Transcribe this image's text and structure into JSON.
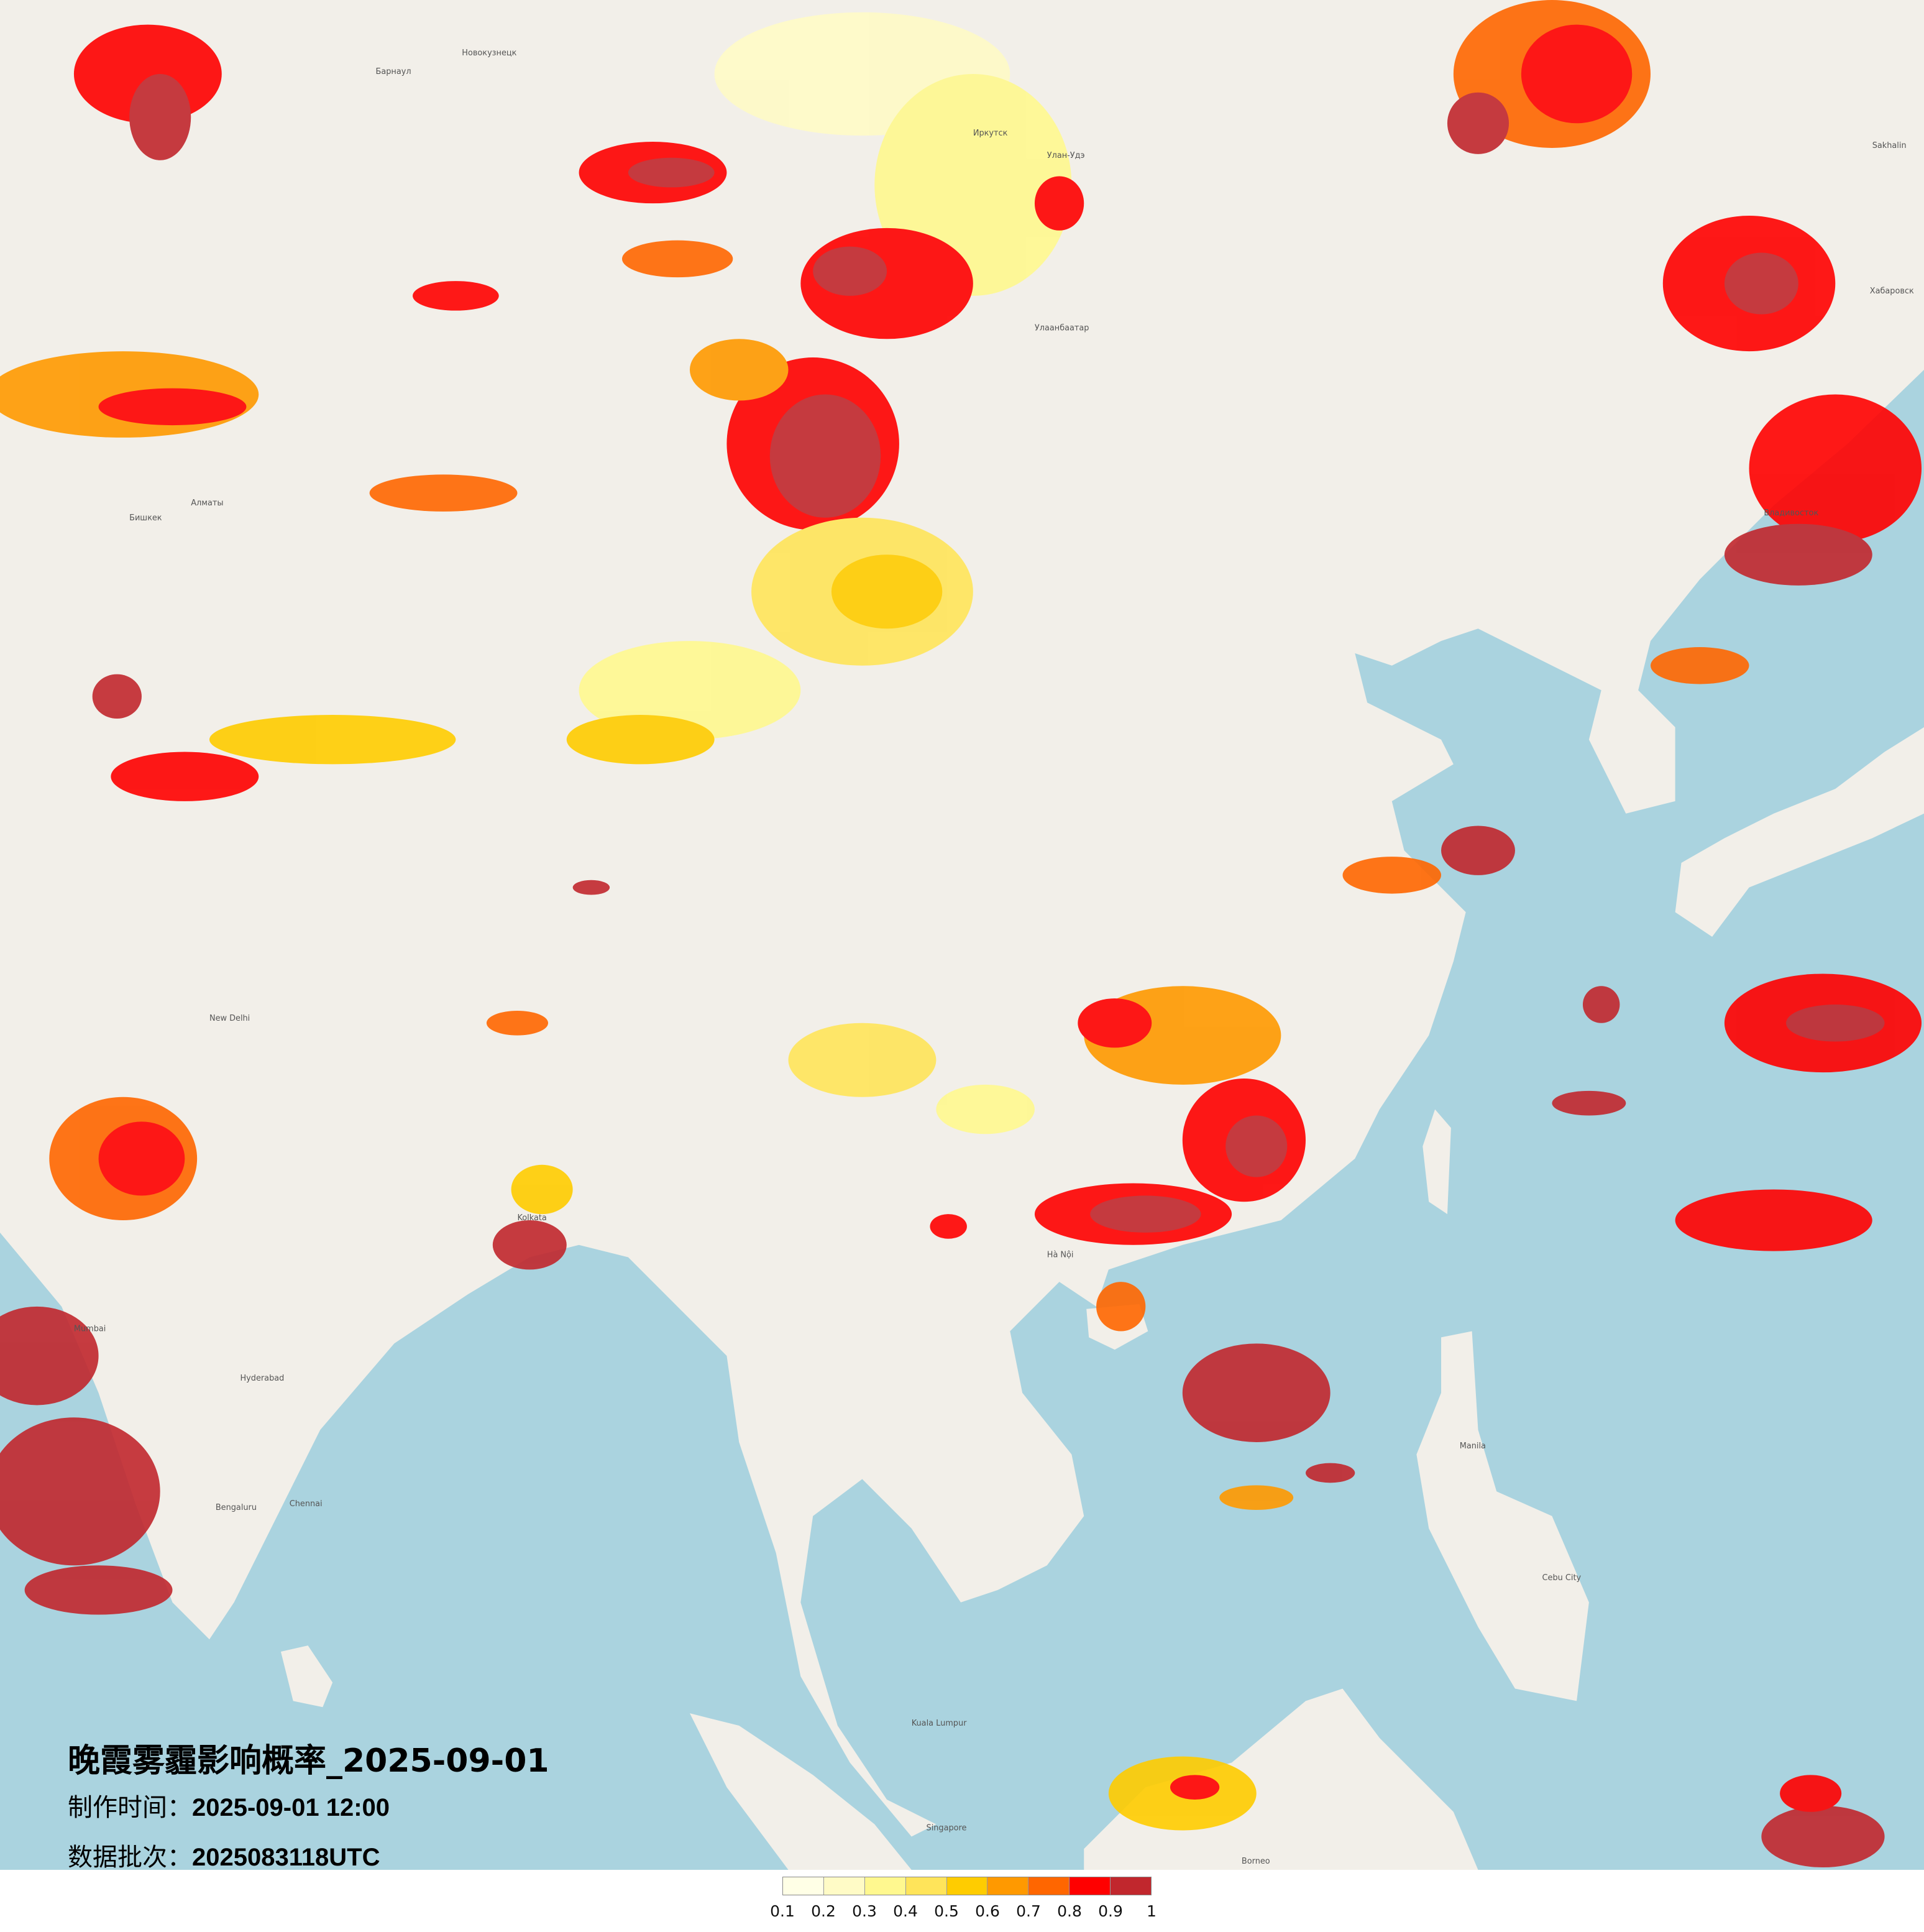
{
  "title": "晚霞雾霾影响概率_2025-09-01",
  "production_time": {
    "label": "制作时间：",
    "value": "2025-09-01 12:00"
  },
  "data_batch": {
    "label": "数据批次：",
    "value": "2025083118UTC"
  },
  "legend": {
    "colors": [
      "#FFFFE6",
      "#FFFBC6",
      "#FFF88F",
      "#FFE45A",
      "#FFCC00",
      "#FF9900",
      "#FF6600",
      "#FF0000",
      "#C1272D"
    ],
    "ticks": [
      "0.1",
      "0.2",
      "0.3",
      "0.4",
      "0.5",
      "0.6",
      "0.7",
      "0.8",
      "0.9",
      "1"
    ]
  },
  "map": {
    "land_color": "#F2EFE9",
    "sea_color": "#AAD3DF",
    "labels": [
      "Новокузнецк",
      "Барнаул",
      "Иркутск",
      "Улан-Удэ",
      "Улаанбаатар",
      "Хабаровск",
      "Владивосток",
      "Алматы",
      "Бишкек",
      "New Delhi",
      "Kolkata",
      "Hyderabad",
      "Bengaluru",
      "Chennai",
      "Mumbai",
      "Singapore",
      "Kuala Lumpur",
      "Borneo",
      "Manila",
      "Cebu City",
      "Hà Nội",
      "Sakhalin"
    ]
  }
}
